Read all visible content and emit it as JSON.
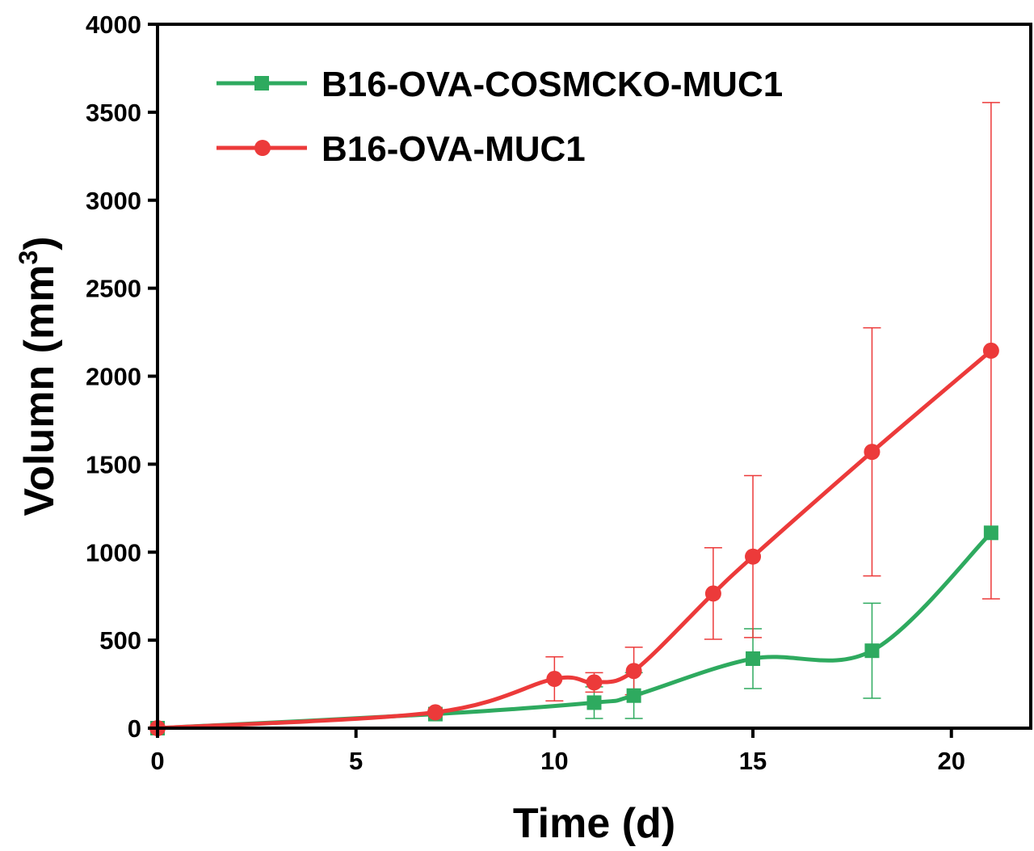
{
  "chart_data": {
    "type": "line",
    "xlabel": "Time (d)",
    "ylabel": "Volumn (mm",
    "ylabel_sup": "3",
    "ylabel_close": ")",
    "xlim": [
      0,
      22
    ],
    "ylim": [
      0,
      4000
    ],
    "x_ticks": [
      0,
      5,
      10,
      15,
      20
    ],
    "y_ticks": [
      0,
      500,
      1000,
      1500,
      2000,
      2500,
      3000,
      3500,
      4000
    ],
    "grid": false,
    "legend_position": "top-left",
    "series": [
      {
        "name": "B16-OVA-COSMCKO-MUC1",
        "color": "#2eaa5f",
        "marker": "square",
        "x": [
          0,
          7,
          11,
          12,
          15,
          18,
          21
        ],
        "y": [
          0,
          80,
          145,
          185,
          395,
          440,
          1110
        ],
        "err_low": [
          0,
          0,
          90,
          130,
          170,
          270,
          0
        ],
        "err_high": [
          0,
          0,
          90,
          130,
          170,
          270,
          0
        ]
      },
      {
        "name": "B16-OVA-MUC1",
        "color": "#ec3a3a",
        "marker": "circle",
        "x": [
          0,
          7,
          10,
          11,
          12,
          14,
          15,
          18,
          21
        ],
        "y": [
          0,
          90,
          280,
          260,
          325,
          765,
          975,
          1570,
          2145
        ],
        "err_low": [
          0,
          0,
          125,
          55,
          135,
          260,
          460,
          705,
          1410
        ],
        "err_high": [
          0,
          0,
          125,
          55,
          135,
          260,
          460,
          705,
          1410
        ]
      }
    ]
  }
}
